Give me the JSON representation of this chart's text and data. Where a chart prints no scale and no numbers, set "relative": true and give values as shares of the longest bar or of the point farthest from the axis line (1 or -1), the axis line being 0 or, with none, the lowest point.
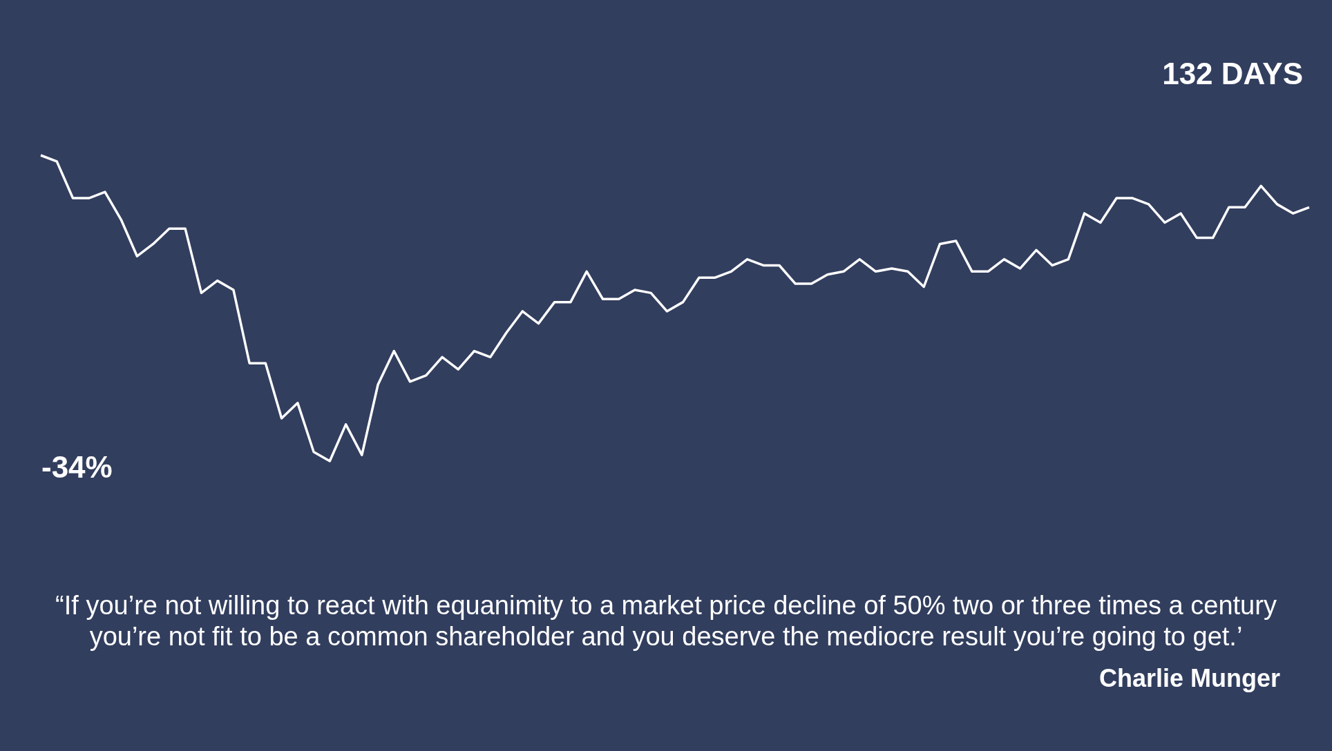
{
  "chart_data": {
    "type": "line",
    "relative": true,
    "legend": false,
    "marker": "none",
    "line_style": "solid",
    "categories": [
      null,
      null,
      null,
      null,
      null,
      null,
      null,
      null,
      null,
      null,
      null,
      null,
      null,
      null,
      null,
      null,
      null,
      null,
      null,
      null,
      null,
      null,
      null,
      null,
      null,
      null,
      null,
      null,
      null,
      null,
      null,
      null,
      null,
      null,
      null,
      null,
      null,
      null,
      null,
      null,
      null,
      null,
      null,
      null,
      null,
      null,
      null,
      null,
      null,
      null,
      null,
      null,
      null,
      null,
      null,
      null,
      null,
      null,
      null,
      null,
      null,
      null,
      null,
      null,
      null,
      null,
      null,
      null,
      null,
      null,
      null,
      null,
      null,
      null,
      null,
      null,
      null,
      null,
      null,
      null
    ],
    "series": [
      {
        "color": "#ffffff",
        "values": [
          1.0,
          0.98,
          0.86,
          0.86,
          0.88,
          0.79,
          0.67,
          0.71,
          0.76,
          0.76,
          0.55,
          0.59,
          0.56,
          0.32,
          0.32,
          0.14,
          0.19,
          0.03,
          0,
          0.12,
          0.02,
          0.25,
          0.36,
          0.26,
          0.28,
          0.34,
          0.3,
          0.36,
          0.34,
          0.42,
          0.49,
          0.45,
          0.52,
          0.52,
          0.62,
          0.53,
          0.53,
          0.56,
          0.55,
          0.49,
          0.52,
          0.6,
          0.6,
          0.62,
          0.66,
          0.64,
          0.64,
          0.58,
          0.58,
          0.61,
          0.62,
          0.66,
          0.62,
          0.63,
          0.62,
          0.57,
          0.71,
          0.72,
          0.62,
          0.62,
          0.66,
          0.63,
          0.69,
          0.64,
          0.66,
          0.81,
          0.78,
          0.86,
          0.86,
          0.84,
          0.78,
          0.81,
          0.73,
          0.73,
          0.83,
          0.83,
          0.9,
          0.84,
          0.81,
          0.83
        ]
      }
    ],
    "annotations": [
      "132 DAYS",
      "-34%",
      "“If you’re not willing to react with equanimity to a market price decline of 50% two or three times a century you’re not fit to be a common shareholder and you deserve the mediocre result you’re going to get.’",
      "Charlie Munger"
    ]
  }
}
